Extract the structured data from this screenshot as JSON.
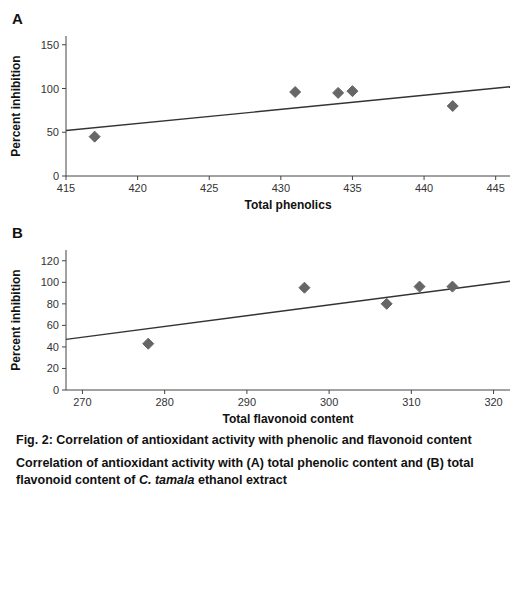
{
  "chart_data": [
    {
      "type": "scatter",
      "title": "A",
      "x_label": "Total phenolics",
      "y_label": "Percent inhibition",
      "xlim": [
        415,
        446
      ],
      "ylim": [
        0,
        160
      ],
      "xticks": [
        415,
        420,
        425,
        430,
        435,
        440,
        445
      ],
      "yticks": [
        0,
        50,
        100,
        150
      ],
      "series": [
        {
          "type": "scatter",
          "marker": "diamond",
          "color": "#666666",
          "x": [
            417,
            431,
            434,
            435,
            442
          ],
          "values": [
            45,
            96,
            95,
            97,
            80
          ]
        },
        {
          "type": "line",
          "color": "#333333",
          "x": [
            415,
            446
          ],
          "values": [
            52,
            102
          ]
        }
      ]
    },
    {
      "type": "scatter",
      "title": "B",
      "x_label": "Total flavonoid  content",
      "y_label": "Percent inhibition",
      "xlim": [
        268,
        322
      ],
      "ylim": [
        0,
        130
      ],
      "xticks": [
        270,
        280,
        290,
        300,
        310,
        320
      ],
      "yticks": [
        0,
        20,
        40,
        60,
        80,
        100,
        120
      ],
      "series": [
        {
          "type": "scatter",
          "marker": "diamond",
          "color": "#666666",
          "x": [
            278,
            297,
            307,
            311,
            315
          ],
          "values": [
            43,
            95,
            80,
            96,
            96
          ]
        },
        {
          "type": "line",
          "color": "#333333",
          "x": [
            268,
            322
          ],
          "values": [
            47,
            101
          ]
        }
      ],
      "annotations": [
        "Fig. 2: Correlation of antioxidant activity with phenolic and flavonoid content",
        "Correlation of antioxidant activity with (A) total phenolic",
        "content and (B) total flavonoid content of ",
        "C. tamala",
        " ethanol",
        "extract"
      ]
    }
  ]
}
